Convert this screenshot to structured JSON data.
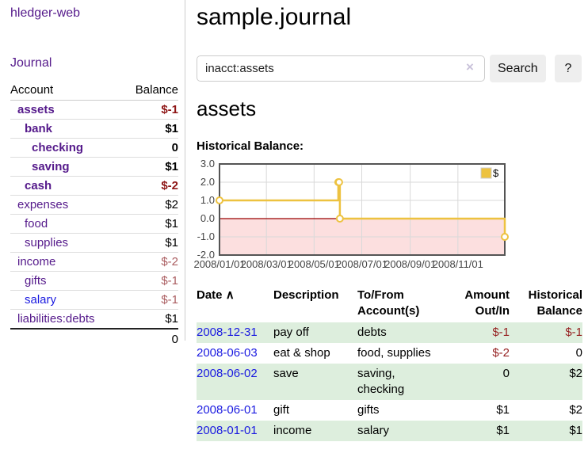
{
  "palette": {
    "purple": "#551a8b",
    "link_blue": "#1a1ae0",
    "negative_strong": "#8e1515",
    "negative_soft": "#aa5d60",
    "register_negative": "#962222",
    "row_green": "#ddeedd",
    "button_gray": "#eeeeee",
    "border_gray": "#cccccc"
  },
  "sidebar": {
    "brand": "hledger-web",
    "nav_journal": "Journal",
    "accounts_table": {
      "header_account": "Account",
      "header_balance": "Balance",
      "rows": [
        {
          "name": "assets",
          "depth": 1,
          "bold": true,
          "name_color": "purple",
          "balance": "$-1",
          "balance_color": "negative-strong"
        },
        {
          "name": "bank",
          "depth": 2,
          "bold": true,
          "name_color": "purple",
          "balance": "$1",
          "balance_color": "normal"
        },
        {
          "name": "checking",
          "depth": 3,
          "bold": true,
          "name_color": "purple",
          "balance": "0",
          "balance_color": "normal"
        },
        {
          "name": "saving",
          "depth": 3,
          "bold": true,
          "name_color": "purple",
          "balance": "$1",
          "balance_color": "normal"
        },
        {
          "name": "cash",
          "depth": 2,
          "bold": true,
          "name_color": "purple",
          "balance": "$-2",
          "balance_color": "negative-strong"
        },
        {
          "name": "expenses",
          "depth": 1,
          "bold": false,
          "name_color": "purple",
          "balance": "$2",
          "balance_color": "normal"
        },
        {
          "name": "food",
          "depth": 2,
          "bold": false,
          "name_color": "purple",
          "balance": "$1",
          "balance_color": "normal"
        },
        {
          "name": "supplies",
          "depth": 2,
          "bold": false,
          "name_color": "purple",
          "balance": "$1",
          "balance_color": "normal"
        },
        {
          "name": "income",
          "depth": 1,
          "bold": false,
          "name_color": "purple",
          "balance": "$-2",
          "balance_color": "negative-soft"
        },
        {
          "name": "gifts",
          "depth": 2,
          "bold": false,
          "name_color": "purple",
          "balance": "$-1",
          "balance_color": "negative-soft"
        },
        {
          "name": "salary",
          "depth": 2,
          "bold": false,
          "name_color": "blue",
          "balance": "$-1",
          "balance_color": "negative-soft"
        },
        {
          "name": "liabilities:debts",
          "depth": 1,
          "bold": false,
          "name_color": "purple",
          "balance": "$1",
          "balance_color": "normal"
        }
      ],
      "total": "0"
    }
  },
  "main": {
    "title": "sample.journal",
    "search": {
      "value": "inacct:assets",
      "clear_icon": "×",
      "button": "Search",
      "help_button": "?"
    },
    "account_heading": "assets",
    "chart_label": "Historical Balance:"
  },
  "chart_data": {
    "type": "line",
    "style": "steps",
    "title": "Historical Balance:",
    "series": [
      {
        "name": "$",
        "color": "#edc240",
        "points": [
          [
            "2008-01-01",
            1
          ],
          [
            "2008-06-01",
            2
          ],
          [
            "2008-06-02",
            2
          ],
          [
            "2008-06-03",
            0
          ],
          [
            "2008-12-31",
            -1
          ]
        ]
      }
    ],
    "x_range": [
      "2008-01-01",
      "2008-12-31"
    ],
    "x_ticks": [
      "2008/01/01",
      "2008/03/01",
      "2008/05/01",
      "2008/07/01",
      "2008/09/01",
      "2008/11/01"
    ],
    "y_ticks": [
      "3.0",
      "2.0",
      "1.0",
      "0.0",
      "-1.0",
      "-2.0"
    ],
    "ylim": [
      -2,
      3
    ],
    "grid": true,
    "legend": {
      "label": "$",
      "position": "top-right"
    },
    "negative_region_color": "#fcdfdf",
    "zero_line_color": "#990000"
  },
  "register": {
    "headers": {
      "date": "Date",
      "sort_icon": "∧",
      "description": "Description",
      "tofrom": "To/From Account(s)",
      "amount": "Amount Out/In",
      "historical": "Historical Balance"
    },
    "rows": [
      {
        "date": "2008-12-31",
        "description": "pay off",
        "accounts": "debts",
        "amount": "$-1",
        "amount_negative": true,
        "balance": "$-1",
        "balance_negative": true
      },
      {
        "date": "2008-06-03",
        "description": "eat & shop",
        "accounts": "food, supplies",
        "amount": "$-2",
        "amount_negative": true,
        "balance": "0",
        "balance_negative": false
      },
      {
        "date": "2008-06-02",
        "description": "save",
        "accounts": "saving, checking",
        "amount": "0",
        "amount_negative": false,
        "balance": "$2",
        "balance_negative": false
      },
      {
        "date": "2008-06-01",
        "description": "gift",
        "accounts": "gifts",
        "amount": "$1",
        "amount_negative": false,
        "balance": "$2",
        "balance_negative": false
      },
      {
        "date": "2008-01-01",
        "description": "income",
        "accounts": "salary",
        "amount": "$1",
        "amount_negative": false,
        "balance": "$1",
        "balance_negative": false
      }
    ]
  }
}
